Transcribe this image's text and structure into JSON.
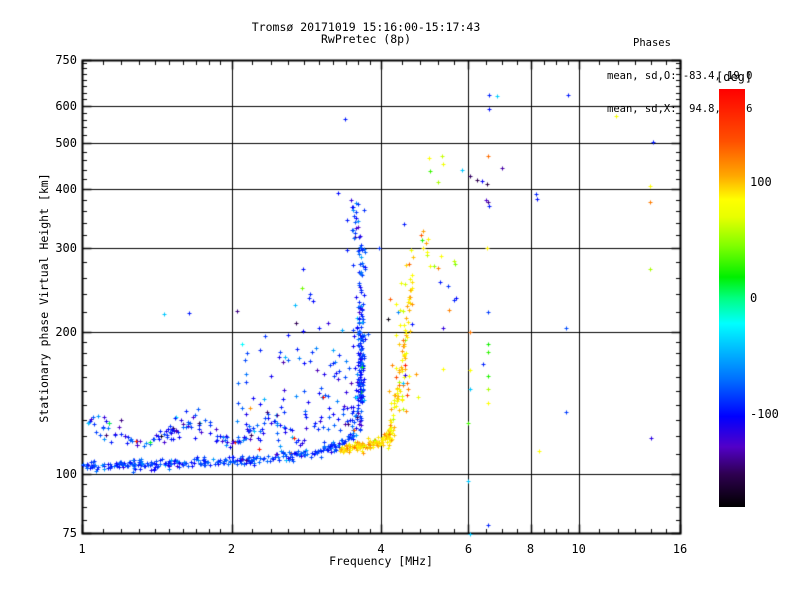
{
  "title": {
    "line1": "Tromsø 20171019 15:16:00-15:17:43",
    "line2": "RwPretec (8p)"
  },
  "annotation": {
    "heading": "Phases",
    "line_o": "mean, sd,O: -83.4, 19.0",
    "line_x": "mean, sd,X:  94.8, 18.6"
  },
  "colors": {
    "foreground": "#000000",
    "background": "#ffffff"
  },
  "chart_data": {
    "type": "scatter",
    "marker": "plus",
    "title": "Tromsø 20171019 15:16:00-15:17:43  RwPretec (8p)",
    "xlabel": "Frequency [MHz]",
    "ylabel": "Stationary phase Virtual Height [km]",
    "xscale": "log",
    "yscale": "log",
    "xlim": [
      1,
      16
    ],
    "ylim": [
      75,
      750
    ],
    "grid": true,
    "x_ticks": {
      "values": [
        1,
        2,
        4,
        6,
        8,
        10,
        16
      ],
      "labels": [
        "1",
        "2",
        "4",
        "6",
        "8",
        "10",
        "16"
      ],
      "grid_at": [
        2,
        4,
        6,
        8,
        10
      ],
      "minor": [
        1.1,
        1.2,
        1.3,
        1.4,
        1.5,
        1.6,
        1.7,
        1.8,
        1.9,
        2.2,
        2.4,
        2.6,
        2.8,
        3.0,
        3.2,
        3.4,
        3.6,
        3.8,
        4.4,
        4.8,
        5.2,
        5.6,
        6.5,
        7,
        7.5,
        8.5,
        9,
        9.5,
        11,
        12,
        13,
        14,
        15
      ]
    },
    "y_ticks": {
      "values": [
        75,
        100,
        200,
        300,
        400,
        500,
        600,
        750
      ],
      "labels": [
        "75",
        "100",
        "200",
        "300",
        "400",
        "500",
        "600",
        "750"
      ],
      "grid_at": [
        100,
        200,
        300,
        400,
        500,
        600
      ],
      "minor": [
        80,
        85,
        90,
        95,
        110,
        120,
        130,
        140,
        150,
        160,
        170,
        180,
        190,
        220,
        240,
        260,
        280,
        320,
        340,
        360,
        380,
        420,
        440,
        460,
        480,
        520,
        540,
        560,
        580,
        620,
        640,
        660,
        680,
        700,
        720,
        740
      ]
    },
    "colorbar": {
      "unit_label": "[deg]",
      "range": [
        -180,
        180
      ],
      "tick_values": [
        100,
        0,
        -100
      ],
      "tick_labels": [
        "100",
        "0",
        "-100"
      ],
      "stops": [
        {
          "deg": -180,
          "color": "#000000"
        },
        {
          "deg": -152,
          "color": "#2e0050"
        },
        {
          "deg": -128,
          "color": "#5200c8"
        },
        {
          "deg": -102,
          "color": "#0000ff"
        },
        {
          "deg": -70,
          "color": "#0070ff"
        },
        {
          "deg": -40,
          "color": "#00c8ff"
        },
        {
          "deg": -22,
          "color": "#00ffff"
        },
        {
          "deg": 0,
          "color": "#00ff80"
        },
        {
          "deg": 18,
          "color": "#00f000"
        },
        {
          "deg": 45,
          "color": "#80ff00"
        },
        {
          "deg": 70,
          "color": "#e8ff00"
        },
        {
          "deg": 85,
          "color": "#ffff00"
        },
        {
          "deg": 105,
          "color": "#ffa800"
        },
        {
          "deg": 135,
          "color": "#ff5000"
        },
        {
          "deg": 180,
          "color": "#ff0000"
        }
      ]
    },
    "series_stats": [
      {
        "name": "O-mode",
        "phase_mean_deg": -83.4,
        "phase_sd_deg": 19.0
      },
      {
        "name": "X-mode",
        "phase_mean_deg": 94.8,
        "phase_sd_deg": 18.6
      }
    ],
    "points_explicit": [
      [
        1.03,
        128,
        -40
      ],
      [
        1.2,
        130,
        -142
      ],
      [
        1.72,
        128,
        -148
      ],
      [
        2.47,
        133,
        -138
      ],
      [
        2.18,
        138,
        112
      ],
      [
        2.27,
        113,
        170
      ],
      [
        1.46,
        218,
        -40
      ],
      [
        1.64,
        219,
        -95
      ],
      [
        2.05,
        221,
        -142
      ],
      [
        2.68,
        228,
        -45
      ],
      [
        2.79,
        271,
        -98
      ],
      [
        2.77,
        247,
        42
      ],
      [
        2.86,
        235,
        -95
      ],
      [
        2.92,
        232,
        -100
      ],
      [
        2.88,
        240,
        -92
      ],
      [
        3.27,
        393,
        -100
      ],
      [
        3.42,
        345,
        -95
      ],
      [
        3.56,
        347,
        -102
      ],
      [
        3.42,
        298,
        -95
      ],
      [
        3.97,
        300,
        -88
      ],
      [
        3.39,
        563,
        -95
      ],
      [
        4.45,
        337,
        -95
      ],
      [
        5.27,
        254,
        -95
      ],
      [
        5.45,
        250,
        -88
      ],
      [
        5.0,
        466,
        85
      ],
      [
        5.3,
        470,
        62
      ],
      [
        5.32,
        452,
        75
      ],
      [
        5.02,
        437,
        30
      ],
      [
        5.2,
        414,
        55
      ],
      [
        5.83,
        440,
        -40
      ],
      [
        6.04,
        426,
        -148
      ],
      [
        6.4,
        417,
        -105
      ],
      [
        6.56,
        470,
        125
      ],
      [
        7.0,
        444,
        -135
      ],
      [
        6.24,
        418,
        -152
      ],
      [
        6.53,
        411,
        -155
      ],
      [
        6.56,
        375,
        -140
      ],
      [
        6.6,
        368,
        -95
      ],
      [
        6.5,
        380,
        -128
      ],
      [
        8.22,
        390,
        -92
      ],
      [
        8.26,
        382,
        -98
      ],
      [
        6.6,
        632,
        -92
      ],
      [
        6.85,
        629,
        -38
      ],
      [
        9.5,
        634,
        -95
      ],
      [
        6.6,
        590,
        -98
      ],
      [
        4.85,
        300,
        90
      ],
      [
        4.92,
        308,
        108
      ],
      [
        4.95,
        295,
        85
      ],
      [
        5.6,
        282,
        60
      ],
      [
        5.65,
        278,
        45
      ],
      [
        6.55,
        300,
        88
      ],
      [
        5.6,
        233,
        -92
      ],
      [
        5.66,
        236,
        -100
      ],
      [
        5.49,
        222,
        118
      ],
      [
        5.34,
        203,
        -118
      ],
      [
        6.04,
        200,
        122
      ],
      [
        6.58,
        220,
        -85
      ],
      [
        9.44,
        203,
        -80
      ],
      [
        6.58,
        188,
        22
      ],
      [
        6.58,
        181,
        28
      ],
      [
        6.43,
        171,
        -92
      ],
      [
        5.34,
        167,
        85
      ],
      [
        6.04,
        166,
        82
      ],
      [
        6.58,
        161,
        25
      ],
      [
        6.04,
        151,
        -40
      ],
      [
        6.58,
        151,
        55
      ],
      [
        6.58,
        141,
        85
      ],
      [
        6.0,
        128,
        32
      ],
      [
        9.44,
        135,
        -85
      ],
      [
        14.0,
        119,
        -115
      ],
      [
        8.33,
        112,
        85
      ],
      [
        6.0,
        96.5,
        -40
      ],
      [
        6.58,
        78,
        -92
      ],
      [
        6.04,
        74.5,
        -40
      ],
      [
        11.9,
        572,
        80
      ],
      [
        14.1,
        503,
        -95
      ],
      [
        13.9,
        406,
        85
      ],
      [
        13.9,
        375,
        120
      ],
      [
        13.9,
        271,
        55
      ]
    ],
    "point_clusters": [
      {
        "name": "o-mode-e-region-baseline",
        "n": 310,
        "f": {
          "type": "ulog",
          "min": 1.0,
          "max": 3.58
        },
        "h": {
          "type": "polyline",
          "pts": [
            [
              1,
              104
            ],
            [
              1.6,
              105.5
            ],
            [
              2.1,
              107
            ],
            [
              2.6,
              109
            ],
            [
              3.0,
              112
            ],
            [
              3.3,
              116
            ],
            [
              3.58,
              124
            ]
          ],
          "sd": 0.012
        },
        "phase": {
          "mean": -85,
          "sd": 14,
          "wild": 0.015
        }
      },
      {
        "name": "o-mode-es-arcs",
        "n": 150,
        "f": {
          "type": "ulog",
          "min": 1.03,
          "max": 2.8
        },
        "h": {
          "type": "bumps",
          "base": 117,
          "amp": 20,
          "freq": 9.0,
          "ph": 0.8
        },
        "phase": {
          "mean": -92,
          "sd": 22,
          "wild": 0.06
        }
      },
      {
        "name": "o-mode-scatter-cloud",
        "n": 150,
        "f": {
          "type": "skewhi",
          "min": 2.05,
          "max": 3.65,
          "pow": 2.2
        },
        "h": {
          "type": "logpow",
          "min": 124,
          "max": 212,
          "pow": 1.5
        },
        "phase": {
          "mean": -94,
          "sd": 22,
          "wild": 0.05
        }
      },
      {
        "name": "o-mode-cusp-column",
        "n": 135,
        "f": {
          "type": "normal",
          "mean": 3.64,
          "sd": 0.035,
          "min": 3.52,
          "max": 3.78
        },
        "h": {
          "type": "logpow",
          "min": 142,
          "max": 308,
          "pow": 1.35
        },
        "phase": {
          "mean": -88,
          "sd": 17,
          "wild": 0.02
        }
      },
      {
        "name": "o-mode-cusp-top",
        "n": 20,
        "f": {
          "type": "normal",
          "mean": 3.57,
          "sd": 0.05,
          "min": 3.4,
          "max": 3.7
        },
        "h": {
          "type": "logpow",
          "min": 300,
          "max": 388,
          "pow": 1.0
        },
        "phase": {
          "mean": -90,
          "sd": 20,
          "wild": 0.0
        }
      },
      {
        "name": "x-mode-baseline",
        "n": 125,
        "f": {
          "type": "ulog",
          "min": 3.3,
          "max": 4.17
        },
        "h": {
          "type": "polyline",
          "pts": [
            [
              3.3,
              113
            ],
            [
              3.7,
              115
            ],
            [
              4.0,
              117.5
            ],
            [
              4.17,
              122
            ]
          ],
          "sd": 0.012
        },
        "phase": {
          "mean": 95,
          "sd": 13,
          "wild": 0.02
        }
      },
      {
        "name": "x-mode-rising-trace",
        "n": 80,
        "f": {
          "type": "ulog",
          "min": 4.12,
          "max": 4.64
        },
        "h": {
          "type": "polyline",
          "pts": [
            [
              4.12,
              121
            ],
            [
              4.25,
              134
            ],
            [
              4.35,
              151
            ],
            [
              4.43,
              171
            ],
            [
              4.49,
              195
            ],
            [
              4.55,
              225
            ],
            [
              4.6,
              250
            ],
            [
              4.64,
              272
            ]
          ],
          "sd": 0.06
        },
        "phase": {
          "mean": 96,
          "sd": 16,
          "wild": 0.02
        }
      },
      {
        "name": "x-mode-scatter-cloud",
        "n": 40,
        "f": {
          "type": "normal",
          "mean": 4.42,
          "sd": 0.15,
          "min": 4.05,
          "max": 4.8
        },
        "h": {
          "type": "logpow",
          "min": 135,
          "max": 260,
          "pow": 1.2
        },
        "phase": {
          "mean": 93,
          "sd": 20,
          "wild": 0.08
        }
      },
      {
        "name": "upper-f-scatter",
        "n": 12,
        "f": {
          "type": "normal",
          "mean": 5.1,
          "sd": 0.4,
          "min": 4.5,
          "max": 6.0
        },
        "h": {
          "type": "logpow",
          "min": 270,
          "max": 330,
          "pow": 1.0
        },
        "phase": {
          "mean": 90,
          "sd": 25,
          "wild": 0.1
        }
      }
    ]
  }
}
